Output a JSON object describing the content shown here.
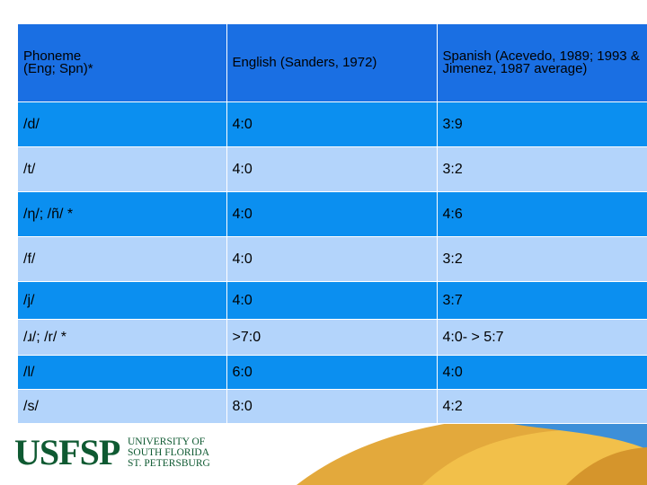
{
  "table": {
    "headers": [
      "Phoneme\n(Eng; Spn)*",
      "English (Sanders, 1972)",
      "Spanish (Acevedo, 1989; 1993 & Jimenez, 1987 average)"
    ],
    "rows": [
      [
        "/d/",
        "4:0",
        "3:9"
      ],
      [
        "/t/",
        "4:0",
        "3:2"
      ],
      [
        "/η/; /ñ/ *",
        "4:0",
        "4:6"
      ],
      [
        "/f/",
        "4:0",
        "3:2"
      ],
      [
        "/j/",
        "4:0",
        "3:7"
      ],
      [
        "/ɹ/; /r/ *",
        ">7:0",
        "4:0- > 5:7"
      ],
      [
        "/l/",
        "6:0",
        "4:0"
      ],
      [
        "/s/",
        "8:0",
        "4:2"
      ]
    ]
  },
  "logo": {
    "mark": "USFSP",
    "line1": "UNIVERSITY OF",
    "line2": "SOUTH FLORIDA",
    "line3": "ST. PETERSBURG"
  },
  "colors": {
    "header_bg": "#1a6fe3",
    "row_dark": "#0b8ff0",
    "row_light": "#b3d4fb",
    "logo_green": "#0f5a32"
  }
}
